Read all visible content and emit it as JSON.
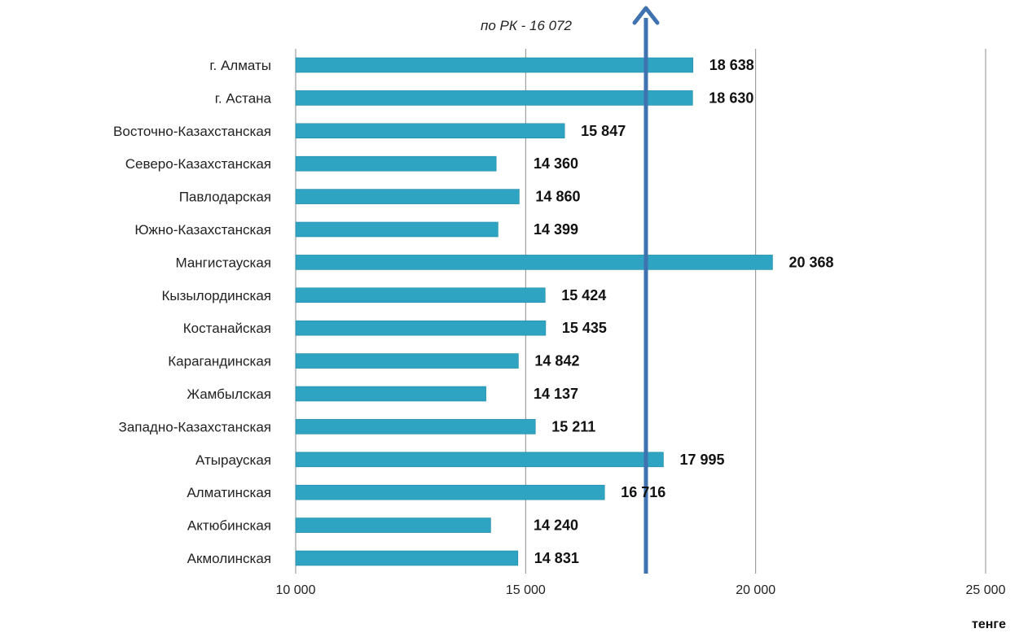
{
  "chart_data": {
    "type": "bar",
    "orientation": "horizontal",
    "categories": [
      "г. Алматы",
      "г. Астана",
      "Восточно-Казахстанская",
      "Северо-Казахстанская",
      "Павлодарская",
      "Южно-Казахстанская",
      "Мангистауская",
      "Кызылординская",
      "Костанайская",
      "Карагандинская",
      "Жамбылская",
      "Западно-Казахстанская",
      "Атырауская",
      "Алматинская",
      "Актюбинская",
      "Акмолинская"
    ],
    "values": [
      18638,
      18630,
      15847,
      14360,
      14860,
      14399,
      20368,
      15424,
      15435,
      14842,
      14137,
      15211,
      17995,
      16716,
      14240,
      14831
    ],
    "value_labels": [
      "18 638",
      "18 630",
      "15 847",
      "14 360",
      "14 860",
      "14 399",
      "20 368",
      "15 424",
      "15 435",
      "14 842",
      "14 137",
      "15 211",
      "17 995",
      "16 716",
      "14 240",
      "14 831"
    ],
    "xlim": [
      10000,
      25000
    ],
    "x_ticks": [
      10000,
      15000,
      20000,
      25000
    ],
    "x_tick_labels": [
      "10 000",
      "15 000",
      "20 000",
      "25 000"
    ],
    "xlabel": "тенге",
    "reference_line": {
      "value": 16072,
      "label": "по РК - 16 072"
    },
    "grid": true,
    "legend": "none",
    "colors": {
      "bar": "#2fa4c2",
      "bar_edge": "#1f8aa6",
      "reference": "#3f72b0",
      "grid": "#8c8c8c"
    }
  }
}
